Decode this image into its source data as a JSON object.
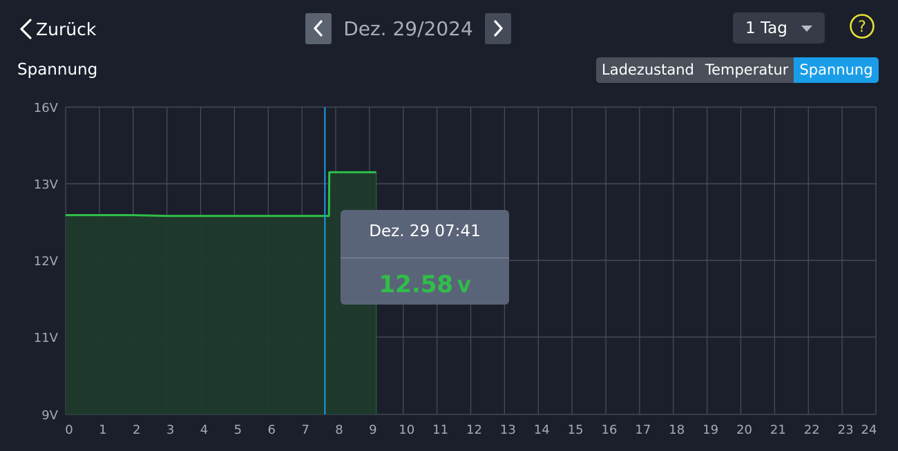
{
  "header": {
    "back_label": "Zurück",
    "date": "Dez. 29/2024",
    "range": "1 Tag",
    "help": "?"
  },
  "section_title": "Spannung",
  "tabs": [
    {
      "label": "Ladezustand",
      "active": false
    },
    {
      "label": "Temperatur",
      "active": false
    },
    {
      "label": "Spannung",
      "active": true
    }
  ],
  "colors": {
    "background": "#1b1f2b",
    "line": "#2fbf48",
    "fill": "#1f3b2c",
    "cursor": "#1a9de8",
    "active_tab": "#1a9de8"
  },
  "tooltip": {
    "time": "Dez. 29 07:41",
    "value": "12.58",
    "unit": "V"
  },
  "chart_data": {
    "type": "area",
    "title": "",
    "xlabel": "",
    "ylabel": "",
    "xlim": [
      0,
      24
    ],
    "x_ticks": [
      0,
      1,
      2,
      3,
      4,
      5,
      6,
      7,
      8,
      9,
      10,
      11,
      12,
      13,
      14,
      15,
      16,
      17,
      18,
      19,
      20,
      21,
      22,
      23,
      24
    ],
    "y_ticks": [
      {
        "value": 9,
        "label": "9V"
      },
      {
        "value": 11,
        "label": "11V"
      },
      {
        "value": 12,
        "label": "12V"
      },
      {
        "value": 13,
        "label": "13V"
      },
      {
        "value": 16,
        "label": "16V"
      }
    ],
    "y_scale": "non-linear (9V–11V and 13V–16V compressed into single grid bands)",
    "grid": true,
    "cursor_x": 7.68,
    "series": [
      {
        "x": [
          0,
          1,
          2,
          3,
          4,
          5,
          6,
          7,
          7.8,
          7.81,
          8.5,
          9.2
        ],
        "y": [
          12.59,
          12.59,
          12.59,
          12.58,
          12.58,
          12.58,
          12.58,
          12.58,
          12.58,
          13.45,
          13.45,
          13.45
        ]
      }
    ]
  }
}
